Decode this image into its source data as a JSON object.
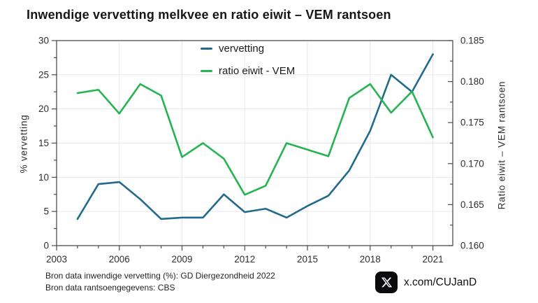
{
  "title": "Inwendige vervetting melkvee en ratio eiwit – VEM rantsoen",
  "legend": {
    "items": [
      {
        "label": "vervetting",
        "color": "#216a8c"
      },
      {
        "label": "ratio eiwit - VEM",
        "color": "#26b352"
      }
    ]
  },
  "chart_data": {
    "type": "line",
    "title": "Inwendige vervetting melkvee en ratio eiwit – VEM rantsoen",
    "x": [
      2004,
      2005,
      2006,
      2007,
      2008,
      2009,
      2010,
      2011,
      2012,
      2013,
      2014,
      2015,
      2016,
      2017,
      2018,
      2019,
      2020,
      2021
    ],
    "series": [
      {
        "name": "vervetting",
        "axis": "left",
        "color": "#216a8c",
        "values": [
          3.9,
          9.0,
          9.3,
          6.8,
          3.9,
          4.1,
          4.1,
          7.5,
          4.9,
          5.4,
          4.1,
          5.8,
          7.3,
          11.0,
          16.8,
          25.0,
          22.5,
          28.0
        ]
      },
      {
        "name": "ratio eiwit - VEM",
        "axis": "right",
        "color": "#26b352",
        "values": [
          0.1786,
          0.179,
          0.1761,
          0.1797,
          0.1783,
          0.1708,
          0.1725,
          0.1706,
          0.1662,
          0.1673,
          0.1725,
          0.1717,
          0.1709,
          0.178,
          0.1797,
          0.1762,
          0.1788,
          0.1732
        ]
      }
    ],
    "left_axis": {
      "label": "% vervetting",
      "ylim": [
        0,
        30
      ],
      "tick_step": 5,
      "minor_step": 2.5,
      "decimals": 0
    },
    "right_axis": {
      "label": "Ratio eiwit – VEM rantsoen",
      "ylim": [
        0.16,
        0.185
      ],
      "tick_step": 0.005,
      "minor_step": 0.0025,
      "decimals": 3
    },
    "x_axis": {
      "xlim": [
        2003,
        2021.95
      ],
      "labeled_ticks": [
        2003,
        2006,
        2009,
        2012,
        2015,
        2018,
        2021
      ],
      "minor_step": 1
    },
    "grid": true,
    "legend_position": "inside-top-center"
  },
  "footer": {
    "line1": "Bron data inwendige vervetting (%): GD Diergezondheid 2022",
    "line2": "Bron data rantsoengegevens: CBS"
  },
  "social": {
    "handle": "x.com/CUJanD",
    "icon": "x-logo"
  },
  "colors": {
    "series_vervetting": "#216a8c",
    "series_ratio": "#26b352",
    "grid": "#e8e8e8",
    "axis": "#4d4d4d",
    "tick_text": "#2e2e2e",
    "title_text": "#161616"
  }
}
